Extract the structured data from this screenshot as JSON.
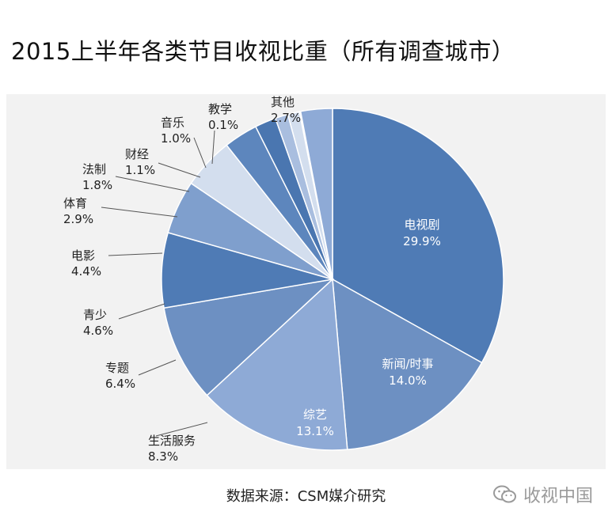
{
  "title": "2015上半年各类节目收视比重（所有调查城市）",
  "source": "数据来源：CSM媒介研究",
  "watermark": "收视中国",
  "colors": {
    "panel_bg": "#f2f2f2",
    "leader_line": "#555555"
  },
  "chart_data": {
    "type": "pie",
    "title": "2015上半年各类节目收视比重（所有调查城市）",
    "unit": "%",
    "slices": [
      {
        "label": "电视剧",
        "value": 29.9,
        "value_label": "29.9%",
        "color": "#4f7bb5",
        "inside": true
      },
      {
        "label": "新闻/时事",
        "value": 14.0,
        "value_label": "14.0%",
        "color": "#6d90c2",
        "inside": true
      },
      {
        "label": "综艺",
        "value": 13.1,
        "value_label": "13.1%",
        "color": "#8eaad6",
        "inside": true
      },
      {
        "label": "生活服务",
        "value": 8.3,
        "value_label": "8.3%",
        "color": "#6d90c2"
      },
      {
        "label": "专题",
        "value": 6.4,
        "value_label": "6.4%",
        "color": "#4f7bb5"
      },
      {
        "label": "青少",
        "value": 4.6,
        "value_label": "4.6%",
        "color": "#7f9fcd"
      },
      {
        "label": "电影",
        "value": 4.4,
        "value_label": "4.4%",
        "color": "#d3deee"
      },
      {
        "label": "体育",
        "value": 2.9,
        "value_label": "2.9%",
        "color": "#5d86bd"
      },
      {
        "label": "法制",
        "value": 1.8,
        "value_label": "1.8%",
        "color": "#4a76b0"
      },
      {
        "label": "财经",
        "value": 1.1,
        "value_label": "1.1%",
        "color": "#a9bedf"
      },
      {
        "label": "音乐",
        "value": 1.0,
        "value_label": "1.0%",
        "color": "#d3deee"
      },
      {
        "label": "教学",
        "value": 0.1,
        "value_label": "0.1%",
        "color": "#6d90c2"
      },
      {
        "label": "其他",
        "value": 2.7,
        "value_label": "2.7%",
        "color": "#8eaad6"
      }
    ]
  }
}
